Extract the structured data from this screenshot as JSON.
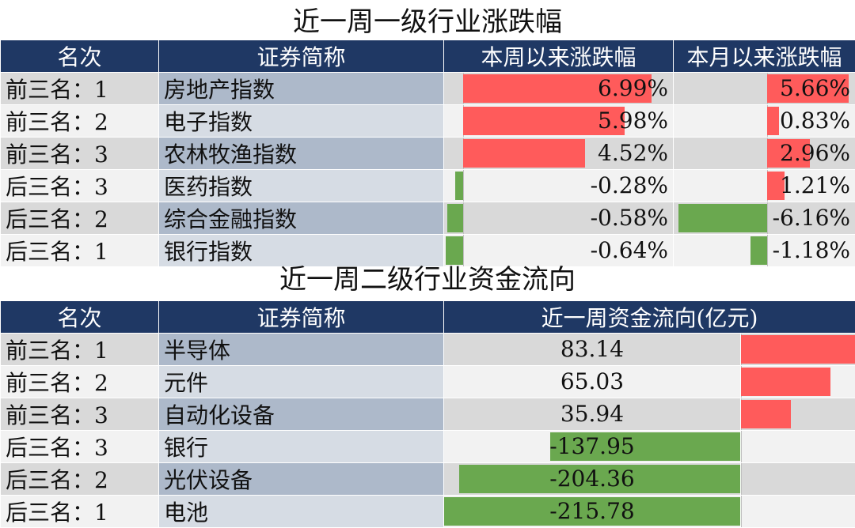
{
  "chart_data": [
    {
      "type": "table",
      "title": "近一周一级行业涨跌幅",
      "headers": [
        "名次",
        "证券简称",
        "本周以来涨跌幅",
        "本月以来涨跌幅"
      ],
      "rows": [
        {
          "rank": "前三名：1",
          "name": "房地产指数",
          "week": 6.99,
          "week_label": "6.99%",
          "month": 5.66,
          "month_label": "5.66%"
        },
        {
          "rank": "前三名：2",
          "name": "电子指数",
          "week": 5.98,
          "week_label": "5.98%",
          "month": 0.83,
          "month_label": "0.83%"
        },
        {
          "rank": "前三名：3",
          "name": "农林牧渔指数",
          "week": 4.52,
          "week_label": "4.52%",
          "month": 2.96,
          "month_label": "2.96%"
        },
        {
          "rank": "后三名：3",
          "name": "医药指数",
          "week": -0.28,
          "week_label": "-0.28%",
          "month": 1.21,
          "month_label": "1.21%"
        },
        {
          "rank": "后三名：2",
          "name": "综合金融指数",
          "week": -0.58,
          "week_label": "-0.58%",
          "month": -6.16,
          "month_label": "-6.16%"
        },
        {
          "rank": "后三名：1",
          "name": "银行指数",
          "week": -0.64,
          "week_label": "-0.64%",
          "month": -1.18,
          "month_label": "-1.18%"
        }
      ]
    },
    {
      "type": "table",
      "title": "近一周二级行业资金流向",
      "headers": [
        "名次",
        "证券简称",
        "近一周资金流向(亿元)"
      ],
      "rows": [
        {
          "rank": "前三名：1",
          "name": "半导体",
          "flow": 83.14,
          "flow_label": "83.14"
        },
        {
          "rank": "前三名：2",
          "name": "元件",
          "flow": 65.03,
          "flow_label": "65.03"
        },
        {
          "rank": "前三名：3",
          "name": "自动化设备",
          "flow": 35.94,
          "flow_label": "35.94"
        },
        {
          "rank": "后三名：3",
          "name": "银行",
          "flow": -137.95,
          "flow_label": "-137.95"
        },
        {
          "rank": "后三名：2",
          "name": "光伏设备",
          "flow": -204.36,
          "flow_label": "-204.36"
        },
        {
          "rank": "后三名：1",
          "name": "电池",
          "flow": -215.78,
          "flow_label": "-215.78"
        }
      ]
    }
  ],
  "colors": {
    "header_bg": "#1f3864",
    "positive": "#ff5b5b",
    "negative": "#6aa84f"
  }
}
